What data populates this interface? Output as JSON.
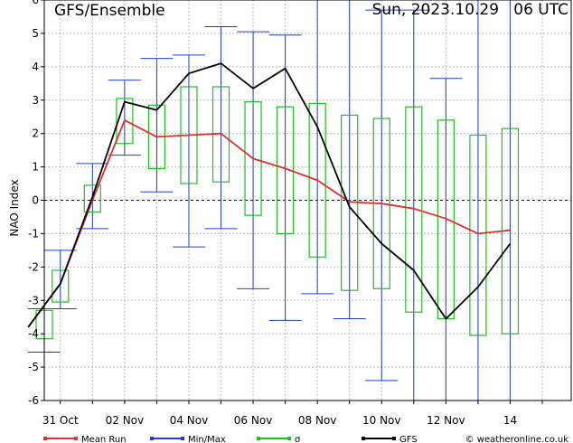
{
  "header": {
    "title": "GFS/Ensemble",
    "run_label": "Sun, 2023.10.29   06 UTC"
  },
  "legend": {
    "mean_label": "Mean Run",
    "minmax_label": "Min/Max",
    "sigma_label": "σ",
    "gfs_label": "GFS",
    "credit": "© weatheronline.co.uk"
  },
  "colors": {
    "mean": "#e03030",
    "minmax": "#2040d0",
    "sigma": "#20c020",
    "gfs": "#000000",
    "grid": "#bbbbbb"
  },
  "chart_data": {
    "type": "line",
    "title": "GFS/Ensemble",
    "ylabel": "NAO Index",
    "xlabel": "",
    "ylim": [
      -6,
      6
    ],
    "yticks": [
      -6,
      -5,
      -4,
      -3,
      -2,
      -1,
      0,
      1,
      2,
      3,
      4,
      5,
      6
    ],
    "xlim": [
      -0.5,
      15.9
    ],
    "xticks": [
      {
        "x": 0,
        "label": "31 Oct"
      },
      {
        "x": 2,
        "label": "02 Nov"
      },
      {
        "x": 4,
        "label": "04 Nov"
      },
      {
        "x": 6,
        "label": "06 Nov"
      },
      {
        "x": 8,
        "label": "08 Nov"
      },
      {
        "x": 10,
        "label": "10 Nov"
      },
      {
        "x": 12,
        "label": "12 Nov"
      },
      {
        "x": 14,
        "label": "14"
      }
    ],
    "grid": true,
    "legend_position": "bottom",
    "series": [
      {
        "name": "Mean Run",
        "x": [
          -1,
          0,
          1,
          2,
          3,
          4,
          5,
          6,
          7,
          8,
          9,
          10,
          11,
          12,
          13,
          14
        ],
        "values": [
          -3.8,
          -2.5,
          0.0,
          2.4,
          1.9,
          1.95,
          2.0,
          1.25,
          0.95,
          0.6,
          -0.05,
          -0.1,
          -0.25,
          -0.55,
          -1.0,
          -0.9
        ]
      },
      {
        "name": "GFS",
        "x": [
          -1,
          0,
          1,
          2,
          3,
          4,
          5,
          6,
          7,
          8,
          9,
          10,
          11,
          12,
          13,
          14
        ],
        "values": [
          -3.8,
          -2.5,
          0.1,
          2.95,
          2.7,
          3.8,
          4.1,
          3.35,
          3.95,
          2.2,
          -0.2,
          -1.3,
          -2.1,
          -3.55,
          -2.6,
          -1.3
        ]
      }
    ],
    "minmax": [
      {
        "x": -0.5,
        "min": -4.55,
        "max": -3.25
      },
      {
        "x": 0,
        "min": -3.25,
        "max": -1.5
      },
      {
        "x": 1,
        "min": -0.85,
        "max": 1.1
      },
      {
        "x": 2,
        "min": 1.35,
        "max": 3.6
      },
      {
        "x": 3,
        "min": 0.25,
        "max": 4.25
      },
      {
        "x": 4,
        "min": -1.4,
        "max": 4.35
      },
      {
        "x": 5,
        "min": -0.85,
        "max": 5.2
      },
      {
        "x": 6,
        "min": -2.65,
        "max": 5.05
      },
      {
        "x": 7,
        "min": -3.6,
        "max": 4.95
      },
      {
        "x": 8,
        "min": -2.8,
        "max": 6.0
      },
      {
        "x": 9,
        "min": -3.55,
        "max": 6.0
      },
      {
        "x": 10,
        "min": -5.4,
        "max": 5.7
      },
      {
        "x": 11,
        "min": -6.0,
        "max": 5.7
      },
      {
        "x": 12,
        "min": -6.0,
        "max": 3.65
      },
      {
        "x": 13,
        "min": -6.0,
        "max": 6.0
      },
      {
        "x": 14,
        "min": -6.0,
        "max": 6.0
      }
    ],
    "sigma": [
      {
        "x": -0.5,
        "low": -4.15,
        "high": -3.3
      },
      {
        "x": 0,
        "low": -3.05,
        "high": -2.1
      },
      {
        "x": 1,
        "low": -0.35,
        "high": 0.45
      },
      {
        "x": 2,
        "low": 1.7,
        "high": 3.05
      },
      {
        "x": 3,
        "low": 0.95,
        "high": 2.85
      },
      {
        "x": 4,
        "low": 0.5,
        "high": 3.4
      },
      {
        "x": 5,
        "low": 0.55,
        "high": 3.4
      },
      {
        "x": 6,
        "low": -0.45,
        "high": 2.95
      },
      {
        "x": 7,
        "low": -1.0,
        "high": 2.8
      },
      {
        "x": 8,
        "low": -1.7,
        "high": 2.9
      },
      {
        "x": 9,
        "low": -2.7,
        "high": 2.55
      },
      {
        "x": 10,
        "low": -2.65,
        "high": 2.45
      },
      {
        "x": 11,
        "low": -3.35,
        "high": 2.8
      },
      {
        "x": 12,
        "low": -3.55,
        "high": 2.4
      },
      {
        "x": 13,
        "low": -4.05,
        "high": 1.95
      },
      {
        "x": 14,
        "low": -4.0,
        "high": 2.15
      }
    ]
  }
}
